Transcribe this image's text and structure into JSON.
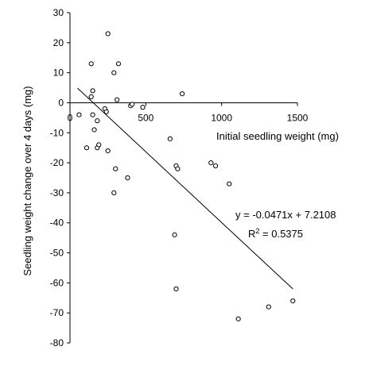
{
  "chart_data": {
    "type": "scatter",
    "xlabel": "Initial seedling weight (mg)",
    "ylabel": "Seedling weight change over 4 days (mg)",
    "xlim": [
      0,
      1500
    ],
    "ylim": [
      -80,
      30
    ],
    "x_ticks": [
      0,
      500,
      1000,
      1500
    ],
    "y_ticks": [
      30,
      20,
      10,
      0,
      -10,
      -20,
      -30,
      -40,
      -50,
      -60,
      -70,
      -80
    ],
    "grid": false,
    "points": [
      {
        "x": 60,
        "y": -4
      },
      {
        "x": 110,
        "y": -15
      },
      {
        "x": 140,
        "y": 13
      },
      {
        "x": 150,
        "y": 4
      },
      {
        "x": 140,
        "y": 2
      },
      {
        "x": 150,
        "y": -4
      },
      {
        "x": 160,
        "y": -9
      },
      {
        "x": 180,
        "y": -6
      },
      {
        "x": 180,
        "y": -15
      },
      {
        "x": 190,
        "y": -14
      },
      {
        "x": 230,
        "y": -2
      },
      {
        "x": 240,
        "y": -3
      },
      {
        "x": 250,
        "y": 23
      },
      {
        "x": 250,
        "y": -16
      },
      {
        "x": 290,
        "y": 10
      },
      {
        "x": 290,
        "y": -30
      },
      {
        "x": 300,
        "y": -22
      },
      {
        "x": 310,
        "y": 1
      },
      {
        "x": 320,
        "y": 13
      },
      {
        "x": 380,
        "y": -25
      },
      {
        "x": 400,
        "y": -1
      },
      {
        "x": 410,
        "y": -0.5
      },
      {
        "x": 480,
        "y": -1.5
      },
      {
        "x": 660,
        "y": -12
      },
      {
        "x": 690,
        "y": -44
      },
      {
        "x": 700,
        "y": -21
      },
      {
        "x": 700,
        "y": -62
      },
      {
        "x": 710,
        "y": -22
      },
      {
        "x": 740,
        "y": 3
      },
      {
        "x": 930,
        "y": -20
      },
      {
        "x": 960,
        "y": -21
      },
      {
        "x": 1050,
        "y": -27
      },
      {
        "x": 1110,
        "y": -72
      },
      {
        "x": 1310,
        "y": -68
      },
      {
        "x": 1470,
        "y": -66
      }
    ],
    "trendline": {
      "slope": -0.0471,
      "intercept": 7.2108,
      "x_range": [
        50,
        1470
      ]
    },
    "equation_text": "y = -0.0471x + 7.2108",
    "r2_text_prefix": "R",
    "r2_text_sup": "2",
    "r2_text_suffix": " = 0.5375"
  }
}
